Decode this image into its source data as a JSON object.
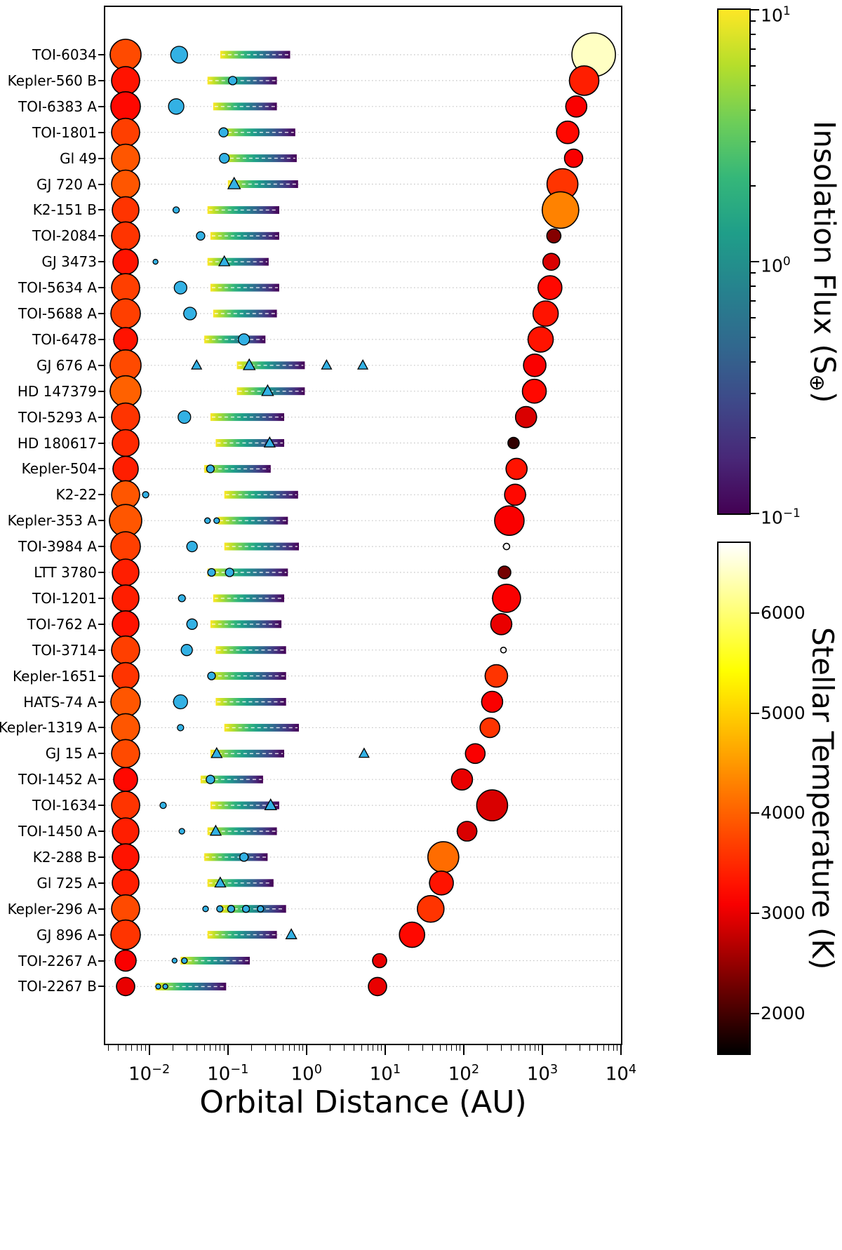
{
  "figure": {
    "xlabel": "Orbital Distance (AU)",
    "flux_colorbar_label": "Insolation Flux (S⊕)",
    "temp_colorbar_label": "Stellar Temperature (K)"
  },
  "colors": {
    "background": "#ffffff",
    "axis": "#000000",
    "grid": "#c4c4c4",
    "planet": "#33b1e4",
    "marker_edge": "#000000",
    "bar_centerline": "#ffffff",
    "open_companion_fill": "#ffffff",
    "viridis_stops": [
      "#fde725",
      "#b5de2b",
      "#6ece58",
      "#35b779",
      "#1f9e89",
      "#26828e",
      "#31688e",
      "#3e4989",
      "#482878",
      "#440154"
    ]
  },
  "chart_data": {
    "type": "scatter",
    "x_axis": {
      "label": "Orbital Distance (AU)",
      "scale": "log",
      "unit": "AU",
      "tick_exponents": [
        -2,
        -1,
        0,
        1,
        2,
        3,
        4
      ],
      "range_log": [
        -2.56,
        4.0
      ]
    },
    "flux_colorbar": {
      "label": "Insolation Flux (S⊕)",
      "scale": "log",
      "tick_exponents": [
        1,
        0,
        -1
      ],
      "range_log": [
        -1,
        1
      ]
    },
    "temp_colorbar": {
      "label": "Stellar Temperature (K)",
      "ticks": [
        2000,
        3000,
        4000,
        5000,
        6000
      ],
      "range": [
        1600,
        6700
      ]
    },
    "host_star_position_au": 0.005,
    "rows": [
      {
        "name": "TOI-6034",
        "star": {
          "temp": 3800,
          "size": 44
        },
        "hz_au": [
          0.08,
          0.62
        ],
        "planets": [
          {
            "a": 0.024,
            "marker": "circle",
            "size": 24
          }
        ],
        "companion": {
          "a": 4500,
          "temp": 6400,
          "size": 62
        }
      },
      {
        "name": "Kepler-560 B",
        "star": {
          "temp": 3300,
          "size": 40
        },
        "hz_au": [
          0.055,
          0.42
        ],
        "planets": [
          {
            "a": 0.115,
            "marker": "circle",
            "size": 12
          }
        ],
        "companion": {
          "a": 3400,
          "temp": 3400,
          "size": 42
        }
      },
      {
        "name": "TOI-6383 A",
        "star": {
          "temp": 3200,
          "size": 42
        },
        "hz_au": [
          0.065,
          0.42
        ],
        "planets": [
          {
            "a": 0.022,
            "marker": "circle",
            "size": 22
          }
        ],
        "companion": {
          "a": 2700,
          "temp": 3100,
          "size": 30
        }
      },
      {
        "name": "TOI-1801",
        "star": {
          "temp": 3700,
          "size": 40
        },
        "hz_au": [
          0.08,
          0.72
        ],
        "planets": [
          {
            "a": 0.088,
            "marker": "circle",
            "size": 13
          }
        ],
        "companion": {
          "a": 2100,
          "temp": 3200,
          "size": 32
        }
      },
      {
        "name": "Gl 49",
        "star": {
          "temp": 3900,
          "size": 40
        },
        "hz_au": [
          0.085,
          0.75
        ],
        "planets": [
          {
            "a": 0.09,
            "marker": "circle",
            "size": 14
          }
        ],
        "companion": {
          "a": 2500,
          "temp": 3100,
          "size": 26
        }
      },
      {
        "name": "GJ 720 A",
        "star": {
          "temp": 3900,
          "size": 40
        },
        "hz_au": [
          0.1,
          0.78
        ],
        "planets": [
          {
            "a": 0.12,
            "marker": "triangle",
            "size": 15
          }
        ],
        "companion": {
          "a": 1800,
          "temp": 3600,
          "size": 44
        }
      },
      {
        "name": "K2-151 B",
        "star": {
          "temp": 3600,
          "size": 38
        },
        "hz_au": [
          0.055,
          0.45
        ],
        "planets": [
          {
            "a": 0.022,
            "marker": "circle",
            "size": 9
          }
        ],
        "companion": {
          "a": 1700,
          "temp": 4300,
          "size": 52
        }
      },
      {
        "name": "TOI-2084",
        "star": {
          "temp": 3600,
          "size": 40
        },
        "hz_au": [
          0.06,
          0.45
        ],
        "planets": [
          {
            "a": 0.045,
            "marker": "circle",
            "size": 12
          }
        ],
        "companion": {
          "a": 1400,
          "temp": 2400,
          "size": 20
        }
      },
      {
        "name": "GJ 3473",
        "star": {
          "temp": 3300,
          "size": 36
        },
        "hz_au": [
          0.055,
          0.33
        ],
        "planets": [
          {
            "a": 0.012,
            "marker": "circle",
            "size": 7
          },
          {
            "a": 0.09,
            "marker": "triangle",
            "size": 13
          }
        ],
        "companion": {
          "a": 1300,
          "temp": 2900,
          "size": 24
        }
      },
      {
        "name": "TOI-5634 A",
        "star": {
          "temp": 3700,
          "size": 40
        },
        "hz_au": [
          0.06,
          0.45
        ],
        "planets": [
          {
            "a": 0.025,
            "marker": "circle",
            "size": 18
          }
        ],
        "companion": {
          "a": 1250,
          "temp": 3200,
          "size": 34
        }
      },
      {
        "name": "TOI-5688 A",
        "star": {
          "temp": 3700,
          "size": 42
        },
        "hz_au": [
          0.065,
          0.42
        ],
        "planets": [
          {
            "a": 0.033,
            "marker": "circle",
            "size": 18
          }
        ],
        "companion": {
          "a": 1100,
          "temp": 3300,
          "size": 36
        }
      },
      {
        "name": "TOI-6478",
        "star": {
          "temp": 3300,
          "size": 34
        },
        "hz_au": [
          0.05,
          0.3
        ],
        "planets": [
          {
            "a": 0.16,
            "marker": "circle",
            "size": 16
          }
        ],
        "companion": {
          "a": 950,
          "temp": 3300,
          "size": 36
        }
      },
      {
        "name": "GJ 676 A",
        "star": {
          "temp": 3800,
          "size": 44
        },
        "hz_au": [
          0.13,
          0.95
        ],
        "planets": [
          {
            "a": 0.04,
            "marker": "triangle",
            "size": 12
          },
          {
            "a": 0.187,
            "marker": "triangle",
            "size": 14
          },
          {
            "a": 1.8,
            "marker": "triangle",
            "size": 12
          },
          {
            "a": 5.2,
            "marker": "triangle",
            "size": 12
          }
        ],
        "companion": {
          "a": 800,
          "temp": 3100,
          "size": 32
        }
      },
      {
        "name": "HD 147379",
        "star": {
          "temp": 4000,
          "size": 44
        },
        "hz_au": [
          0.13,
          0.95
        ],
        "planets": [
          {
            "a": 0.32,
            "marker": "triangle",
            "size": 14
          }
        ],
        "companion": {
          "a": 790,
          "temp": 3200,
          "size": 34
        }
      },
      {
        "name": "TOI-5293 A",
        "star": {
          "temp": 3600,
          "size": 40
        },
        "hz_au": [
          0.06,
          0.52
        ],
        "planets": [
          {
            "a": 0.028,
            "marker": "circle",
            "size": 18
          }
        ],
        "companion": {
          "a": 620,
          "temp": 2900,
          "size": 30
        }
      },
      {
        "name": "HD 180617",
        "star": {
          "temp": 3500,
          "size": 38
        },
        "hz_au": [
          0.07,
          0.52
        ],
        "planets": [
          {
            "a": 0.34,
            "marker": "triangle",
            "size": 13
          }
        ],
        "companion": {
          "a": 430,
          "temp": 1900,
          "size": 16
        }
      },
      {
        "name": "Kepler-504",
        "star": {
          "temp": 3400,
          "size": 36
        },
        "hz_au": [
          0.05,
          0.35
        ],
        "planets": [
          {
            "a": 0.06,
            "marker": "circle",
            "size": 11
          }
        ],
        "companion": {
          "a": 470,
          "temp": 3300,
          "size": 30
        }
      },
      {
        "name": "K2-22",
        "star": {
          "temp": 3900,
          "size": 40
        },
        "hz_au": [
          0.09,
          0.78
        ],
        "planets": [
          {
            "a": 0.009,
            "marker": "circle",
            "size": 9
          }
        ],
        "companion": {
          "a": 450,
          "temp": 3200,
          "size": 30
        }
      },
      {
        "name": "Kepler-353 A",
        "star": {
          "temp": 3900,
          "size": 46
        },
        "hz_au": [
          0.075,
          0.58
        ],
        "planets": [
          {
            "a": 0.055,
            "marker": "circle",
            "size": 8
          },
          {
            "a": 0.072,
            "marker": "circle",
            "size": 8
          }
        ],
        "companion": {
          "a": 380,
          "temp": 3100,
          "size": 42
        }
      },
      {
        "name": "TOI-3984 A",
        "star": {
          "temp": 3700,
          "size": 42
        },
        "hz_au": [
          0.09,
          0.8
        ],
        "planets": [
          {
            "a": 0.035,
            "marker": "circle",
            "size": 15
          }
        ],
        "companion": {
          "a": 350,
          "size": 9,
          "open": true
        }
      },
      {
        "name": "LTT 3780",
        "star": {
          "temp": 3400,
          "size": 38
        },
        "hz_au": [
          0.055,
          0.58
        ],
        "planets": [
          {
            "a": 0.062,
            "marker": "circle",
            "size": 11
          },
          {
            "a": 0.105,
            "marker": "circle",
            "size": 12
          }
        ],
        "companion": {
          "a": 330,
          "temp": 2300,
          "size": 18
        }
      },
      {
        "name": "TOI-1201",
        "star": {
          "temp": 3400,
          "size": 38
        },
        "hz_au": [
          0.065,
          0.52
        ],
        "planets": [
          {
            "a": 0.026,
            "marker": "circle",
            "size": 10
          }
        ],
        "companion": {
          "a": 350,
          "temp": 3100,
          "size": 40
        }
      },
      {
        "name": "TOI-762 A",
        "star": {
          "temp": 3300,
          "size": 38
        },
        "hz_au": [
          0.06,
          0.48
        ],
        "planets": [
          {
            "a": 0.035,
            "marker": "circle",
            "size": 15
          }
        ],
        "companion": {
          "a": 300,
          "temp": 3000,
          "size": 30
        }
      },
      {
        "name": "TOI-3714",
        "star": {
          "temp": 3700,
          "size": 40
        },
        "hz_au": [
          0.07,
          0.55
        ],
        "planets": [
          {
            "a": 0.03,
            "marker": "circle",
            "size": 16
          }
        ],
        "companion": {
          "a": 320,
          "size": 8,
          "open": true
        }
      },
      {
        "name": "Kepler-1651",
        "star": {
          "temp": 3600,
          "size": 38
        },
        "hz_au": [
          0.06,
          0.55
        ],
        "planets": [
          {
            "a": 0.062,
            "marker": "circle",
            "size": 11
          }
        ],
        "companion": {
          "a": 260,
          "temp": 3600,
          "size": 32
        }
      },
      {
        "name": "HATS-74 A",
        "star": {
          "temp": 3900,
          "size": 42
        },
        "hz_au": [
          0.07,
          0.55
        ],
        "planets": [
          {
            "a": 0.025,
            "marker": "circle",
            "size": 20
          }
        ],
        "companion": {
          "a": 230,
          "temp": 3100,
          "size": 30
        }
      },
      {
        "name": "Kepler-1319 A",
        "star": {
          "temp": 3900,
          "size": 40
        },
        "hz_au": [
          0.09,
          0.8
        ],
        "planets": [
          {
            "a": 0.025,
            "marker": "circle",
            "size": 9
          }
        ],
        "companion": {
          "a": 215,
          "temp": 3600,
          "size": 28
        }
      },
      {
        "name": "GJ 15 A",
        "star": {
          "temp": 3800,
          "size": 40
        },
        "hz_au": [
          0.06,
          0.52
        ],
        "planets": [
          {
            "a": 0.072,
            "marker": "triangle",
            "size": 13
          },
          {
            "a": 5.4,
            "marker": "triangle",
            "size": 12
          }
        ],
        "companion": {
          "a": 140,
          "temp": 3100,
          "size": 28
        }
      },
      {
        "name": "TOI-1452 A",
        "star": {
          "temp": 3200,
          "size": 34
        },
        "hz_au": [
          0.045,
          0.28
        ],
        "planets": [
          {
            "a": 0.06,
            "marker": "circle",
            "size": 12
          }
        ],
        "companion": {
          "a": 95,
          "temp": 3000,
          "size": 30
        }
      },
      {
        "name": "TOI-1634",
        "star": {
          "temp": 3600,
          "size": 40
        },
        "hz_au": [
          0.06,
          0.45
        ],
        "planets": [
          {
            "a": 0.015,
            "marker": "circle",
            "size": 9
          },
          {
            "a": 0.35,
            "marker": "triangle",
            "size": 14
          }
        ],
        "companion": {
          "a": 230,
          "temp": 2900,
          "size": 44
        }
      },
      {
        "name": "TOI-1450 A",
        "star": {
          "temp": 3400,
          "size": 38
        },
        "hz_au": [
          0.055,
          0.42
        ],
        "planets": [
          {
            "a": 0.026,
            "marker": "circle",
            "size": 8
          },
          {
            "a": 0.07,
            "marker": "triangle",
            "size": 13
          }
        ],
        "companion": {
          "a": 110,
          "temp": 2900,
          "size": 28
        }
      },
      {
        "name": "K2-288 B",
        "star": {
          "temp": 3300,
          "size": 38
        },
        "hz_au": [
          0.05,
          0.32
        ],
        "planets": [
          {
            "a": 0.16,
            "marker": "circle",
            "size": 12
          }
        ],
        "companion": {
          "a": 55,
          "temp": 4100,
          "size": 44
        }
      },
      {
        "name": "Gl 725 A",
        "star": {
          "temp": 3400,
          "size": 38
        },
        "hz_au": [
          0.055,
          0.38
        ],
        "planets": [
          {
            "a": 0.08,
            "marker": "triangle",
            "size": 13
          }
        ],
        "companion": {
          "a": 52,
          "temp": 3300,
          "size": 34
        }
      },
      {
        "name": "Kepler-296 A",
        "star": {
          "temp": 3800,
          "size": 40
        },
        "hz_au": [
          0.08,
          0.55
        ],
        "planets": [
          {
            "a": 0.052,
            "marker": "circle",
            "size": 8
          },
          {
            "a": 0.079,
            "marker": "circle",
            "size": 9
          },
          {
            "a": 0.11,
            "marker": "circle",
            "size": 10
          },
          {
            "a": 0.17,
            "marker": "circle",
            "size": 10
          },
          {
            "a": 0.26,
            "marker": "circle",
            "size": 9
          }
        ],
        "companion": {
          "a": 38,
          "temp": 3600,
          "size": 38
        }
      },
      {
        "name": "GJ 896 A",
        "star": {
          "temp": 3600,
          "size": 42
        },
        "hz_au": [
          0.055,
          0.42
        ],
        "planets": [
          {
            "a": 0.64,
            "marker": "triangle",
            "size": 13
          }
        ],
        "companion": {
          "a": 22,
          "temp": 3200,
          "size": 36
        }
      },
      {
        "name": "TOI-2267 A",
        "star": {
          "temp": 3100,
          "size": 30
        },
        "hz_au": [
          0.025,
          0.19
        ],
        "planets": [
          {
            "a": 0.021,
            "marker": "circle",
            "size": 7
          },
          {
            "a": 0.028,
            "marker": "circle",
            "size": 8
          }
        ],
        "companion": {
          "a": 8.5,
          "temp": 3000,
          "size": 20
        }
      },
      {
        "name": "TOI-2267 B",
        "star": {
          "temp": 3000,
          "size": 26
        },
        "hz_au": [
          0.012,
          0.095
        ],
        "planets": [
          {
            "a": 0.013,
            "marker": "circle",
            "size": 7
          },
          {
            "a": 0.016,
            "marker": "circle",
            "size": 7
          }
        ],
        "companion": {
          "a": 8,
          "temp": 3000,
          "size": 26
        }
      }
    ]
  }
}
